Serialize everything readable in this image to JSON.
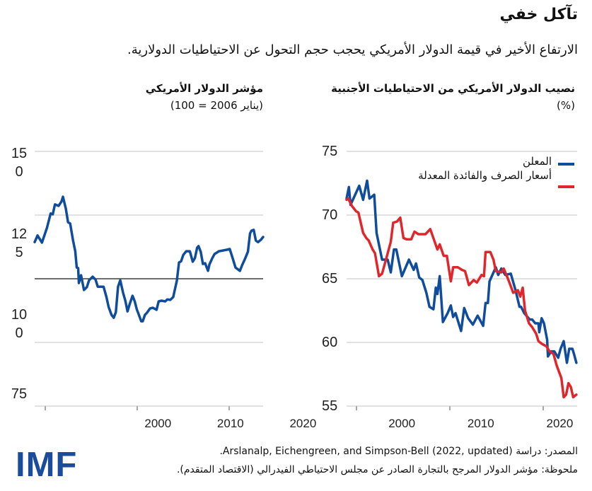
{
  "header": {
    "title": "تآكل خفي",
    "subtitle": "الارتفاع الأخير في قيمة الدولار الأمريكي يحجب حجم التحول عن الاحتياطيات الدولارية."
  },
  "colors": {
    "announced": "#0f4c9c",
    "adjusted": "#e1262b",
    "grid": "#d9d9d9",
    "reference": "#444444",
    "brand": "#1a4c9b"
  },
  "chart_data": [
    {
      "type": "line",
      "title": "مؤشر الدولار الأمريكي",
      "subtitle": "(يناير 2006 = 100)",
      "ylim": [
        50,
        150
      ],
      "xlim": [
        1983,
        2014.5
      ],
      "yticks": [
        150,
        125,
        100,
        75
      ],
      "xticks": [
        2000,
        2010,
        2020
      ],
      "reference_line": 100,
      "grid": true,
      "series": [
        {
          "color": "#0f4c9c",
          "points": [
            [
              1983.0,
              114.4
            ],
            [
              1983.4,
              117.0
            ],
            [
              1984.0,
              114.2
            ],
            [
              1984.7,
              120.0
            ],
            [
              1985.2,
              125.6
            ],
            [
              1985.5,
              125.3
            ],
            [
              1985.8,
              129.2
            ],
            [
              1986.3,
              128.6
            ],
            [
              1986.7,
              130.3
            ],
            [
              1986.9,
              132.2
            ],
            [
              1987.3,
              127.5
            ],
            [
              1987.6,
              122.2
            ],
            [
              1987.9,
              121.7
            ],
            [
              1988.3,
              115.0
            ],
            [
              1988.6,
              110.8
            ],
            [
              1988.8,
              104.4
            ],
            [
              1989.0,
              104.2
            ],
            [
              1989.1,
              98.3
            ],
            [
              1989.4,
              101.4
            ],
            [
              1989.8,
              95.6
            ],
            [
              1990.2,
              96.7
            ],
            [
              1990.5,
              99.4
            ],
            [
              1991.0,
              100.8
            ],
            [
              1991.4,
              99.7
            ],
            [
              1991.7,
              96.9
            ],
            [
              1992.5,
              96.9
            ],
            [
              1992.9,
              92.8
            ],
            [
              1993.2,
              88.9
            ],
            [
              1993.6,
              85.8
            ],
            [
              1993.9,
              84.7
            ],
            [
              1994.2,
              86.9
            ],
            [
              1994.5,
              96.9
            ],
            [
              1994.8,
              99.4
            ],
            [
              1995.2,
              94.4
            ],
            [
              1995.5,
              91.4
            ],
            [
              1995.8,
              87.2
            ],
            [
              1996.1,
              90.0
            ],
            [
              1996.5,
              93.3
            ],
            [
              1996.8,
              91.1
            ],
            [
              1997.1,
              87.8
            ],
            [
              1997.3,
              86.4
            ],
            [
              1997.7,
              83.3
            ],
            [
              1997.9,
              83.3
            ],
            [
              1998.2,
              85.8
            ],
            [
              1998.5,
              86.7
            ],
            [
              1998.9,
              88.3
            ],
            [
              1999.3,
              88.6
            ],
            [
              1999.8,
              87.8
            ],
            [
              2000.1,
              91.1
            ],
            [
              2000.5,
              91.4
            ],
            [
              2001.0,
              91.1
            ],
            [
              2001.3,
              91.9
            ],
            [
              2001.7,
              91.7
            ],
            [
              2002.1,
              92.8
            ],
            [
              2002.3,
              95.3
            ],
            [
              2002.6,
              99.2
            ],
            [
              2002.9,
              106.4
            ],
            [
              2003.2,
              106.9
            ],
            [
              2003.5,
              109.4
            ],
            [
              2003.9,
              110.8
            ],
            [
              2004.4,
              110.8
            ],
            [
              2004.8,
              106.7
            ],
            [
              2005.1,
              108.1
            ],
            [
              2005.4,
              112.2
            ],
            [
              2005.6,
              112.8
            ],
            [
              2005.9,
              110.6
            ],
            [
              2006.2,
              105.8
            ],
            [
              2006.5,
              106.1
            ],
            [
              2006.9,
              103.1
            ],
            [
              2007.1,
              105.6
            ],
            [
              2007.5,
              108.1
            ],
            [
              2007.8,
              109.7
            ],
            [
              2008.4,
              110.8
            ],
            [
              2009.0,
              111.1
            ],
            [
              2009.5,
              111.4
            ],
            [
              2009.9,
              111.7
            ],
            [
              2010.3,
              108.1
            ],
            [
              2010.7,
              104.4
            ],
            [
              2011.3,
              103.1
            ],
            [
              2011.6,
              105.3
            ],
            [
              2012.0,
              107.8
            ],
            [
              2012.4,
              110.6
            ],
            [
              2012.7,
              117.8
            ],
            [
              2012.9,
              118.9
            ],
            [
              2013.2,
              119.2
            ],
            [
              2013.5,
              115.0
            ],
            [
              2013.8,
              114.4
            ],
            [
              2014.2,
              115.3
            ],
            [
              2014.5,
              116.4
            ]
          ]
        }
      ]
    },
    {
      "type": "line",
      "title": "نصيب الدولار الأمريكي من الاحتياطيات الأجنبية",
      "subtitle": "(%)",
      "ylim": [
        55,
        75
      ],
      "xlim": [
        1993,
        2022.2
      ],
      "yticks": [
        75,
        70,
        65,
        60,
        55
      ],
      "xticks": [
        2000,
        2010,
        2020
      ],
      "grid": true,
      "legend": "top-right",
      "series": [
        {
          "name": "المعلن",
          "color": "#0f4c9c",
          "points": [
            [
              1993.0,
              71.3
            ],
            [
              1993.3,
              72.2
            ],
            [
              1993.5,
              70.8
            ],
            [
              1994.6,
              72.3
            ],
            [
              1995.1,
              71.2
            ],
            [
              1995.6,
              72.7
            ],
            [
              1995.9,
              71.3
            ],
            [
              1996.5,
              71.6
            ],
            [
              1996.8,
              68.6
            ],
            [
              1997.5,
              66.5
            ],
            [
              1998.2,
              66.5
            ],
            [
              1998.6,
              65.5
            ],
            [
              1999.0,
              67.3
            ],
            [
              1999.3,
              67.3
            ],
            [
              2000.0,
              65.2
            ],
            [
              2000.9,
              66.5
            ],
            [
              2001.5,
              65.7
            ],
            [
              2001.8,
              66.2
            ],
            [
              2002.2,
              65.1
            ],
            [
              2002.6,
              64.9
            ],
            [
              2003.1,
              63.9
            ],
            [
              2003.5,
              62.8
            ],
            [
              2004.0,
              62.6
            ],
            [
              2004.3,
              64.3
            ],
            [
              2004.5,
              63.8
            ],
            [
              2004.8,
              65.2
            ],
            [
              2005.2,
              61.6
            ],
            [
              2005.8,
              62.3
            ],
            [
              2006.2,
              62.9
            ],
            [
              2006.5,
              62.0
            ],
            [
              2006.8,
              62.3
            ],
            [
              2007.5,
              60.9
            ],
            [
              2007.9,
              62.7
            ],
            [
              2008.4,
              61.9
            ],
            [
              2009.0,
              61.4
            ],
            [
              2009.6,
              62.1
            ],
            [
              2010.3,
              61.3
            ],
            [
              2010.6,
              63.1
            ],
            [
              2010.9,
              63.1
            ],
            [
              2011.1,
              64.8
            ],
            [
              2011.9,
              65.9
            ],
            [
              2012.2,
              65.3
            ],
            [
              2012.6,
              65.8
            ],
            [
              2013.1,
              65.3
            ],
            [
              2013.8,
              65.4
            ],
            [
              2014.4,
              64.1
            ],
            [
              2014.9,
              62.8
            ],
            [
              2015.1,
              62.8
            ],
            [
              2015.5,
              62.3
            ],
            [
              2016.2,
              61.8
            ],
            [
              2016.5,
              61.8
            ],
            [
              2016.9,
              61.5
            ],
            [
              2017.3,
              61.5
            ],
            [
              2017.4,
              60.8
            ],
            [
              2017.7,
              61.9
            ],
            [
              2018.0,
              61.5
            ],
            [
              2018.4,
              60.2
            ],
            [
              2018.5,
              58.9
            ],
            [
              2018.9,
              59.3
            ],
            [
              2019.3,
              59.3
            ],
            [
              2019.8,
              58.8
            ],
            [
              2020.1,
              59.5
            ],
            [
              2020.5,
              60.1
            ],
            [
              2020.9,
              58.4
            ],
            [
              2021.2,
              59.5
            ],
            [
              2021.6,
              59.5
            ],
            [
              2021.8,
              59.1
            ],
            [
              2022.1,
              58.4
            ]
          ]
        },
        {
          "name": "أسعار الصرف والفائدة المعدلة",
          "color": "#e1262b",
          "points": [
            [
              1993.0,
              71.2
            ],
            [
              1993.2,
              71.3
            ],
            [
              1993.7,
              70.7
            ],
            [
              1994.2,
              70.3
            ],
            [
              1994.5,
              70.2
            ],
            [
              1995.1,
              68.6
            ],
            [
              1995.5,
              68.2
            ],
            [
              1995.8,
              68.0
            ],
            [
              1996.3,
              67.3
            ],
            [
              1996.6,
              67.0
            ],
            [
              1997.1,
              65.2
            ],
            [
              1997.5,
              65.4
            ],
            [
              1997.9,
              66.3
            ],
            [
              1998.6,
              67.9
            ],
            [
              1998.9,
              69.4
            ],
            [
              1999.4,
              69.5
            ],
            [
              1999.8,
              69.8
            ],
            [
              2000.2,
              68.2
            ],
            [
              2000.6,
              68.1
            ],
            [
              2001.2,
              68.1
            ],
            [
              2001.6,
              68.7
            ],
            [
              2002.1,
              68.5
            ],
            [
              2003.0,
              68.5
            ],
            [
              2003.6,
              68.9
            ],
            [
              2004.5,
              67.3
            ],
            [
              2004.8,
              67.7
            ],
            [
              2005.3,
              66.8
            ],
            [
              2005.7,
              66.8
            ],
            [
              2006.2,
              64.8
            ],
            [
              2006.5,
              65.9
            ],
            [
              2007.1,
              65.9
            ],
            [
              2007.6,
              65.7
            ],
            [
              2008.0,
              65.6
            ],
            [
              2008.5,
              64.5
            ],
            [
              2009.1,
              64.9
            ],
            [
              2009.5,
              64.7
            ],
            [
              2010.1,
              65.3
            ],
            [
              2010.4,
              65.2
            ],
            [
              2010.6,
              67.1
            ],
            [
              2011.2,
              67.1
            ],
            [
              2011.6,
              66.5
            ],
            [
              2011.9,
              65.6
            ],
            [
              2012.6,
              65.5
            ],
            [
              2012.9,
              65.8
            ],
            [
              2013.5,
              64.9
            ],
            [
              2014.1,
              63.9
            ],
            [
              2014.7,
              64.1
            ],
            [
              2015.0,
              63.6
            ],
            [
              2015.3,
              64.3
            ],
            [
              2015.6,
              62.5
            ],
            [
              2016.1,
              61.5
            ],
            [
              2016.5,
              61.2
            ],
            [
              2017.0,
              60.7
            ],
            [
              2017.3,
              60.1
            ],
            [
              2017.7,
              59.9
            ],
            [
              2018.3,
              59.7
            ],
            [
              2018.7,
              59.3
            ],
            [
              2019.2,
              59.1
            ],
            [
              2019.6,
              58.2
            ],
            [
              2019.9,
              57.7
            ],
            [
              2020.2,
              57.2
            ],
            [
              2020.5,
              55.7
            ],
            [
              2020.8,
              55.9
            ],
            [
              2021.1,
              56.8
            ],
            [
              2021.4,
              56.5
            ],
            [
              2021.7,
              55.7
            ],
            [
              2022.1,
              55.9
            ]
          ]
        }
      ]
    }
  ],
  "footer": {
    "logo": "IMF",
    "source": "المصدر: دراسة Arslanalp, Eichengreen, and Simpson-Bell (2022, updated).",
    "note": "ملحوظة: مؤشر الدولار المرجح بالتجارة الصادر عن مجلس الاحتياطي الفيدرالي (الاقتصاد المتقدم)."
  }
}
